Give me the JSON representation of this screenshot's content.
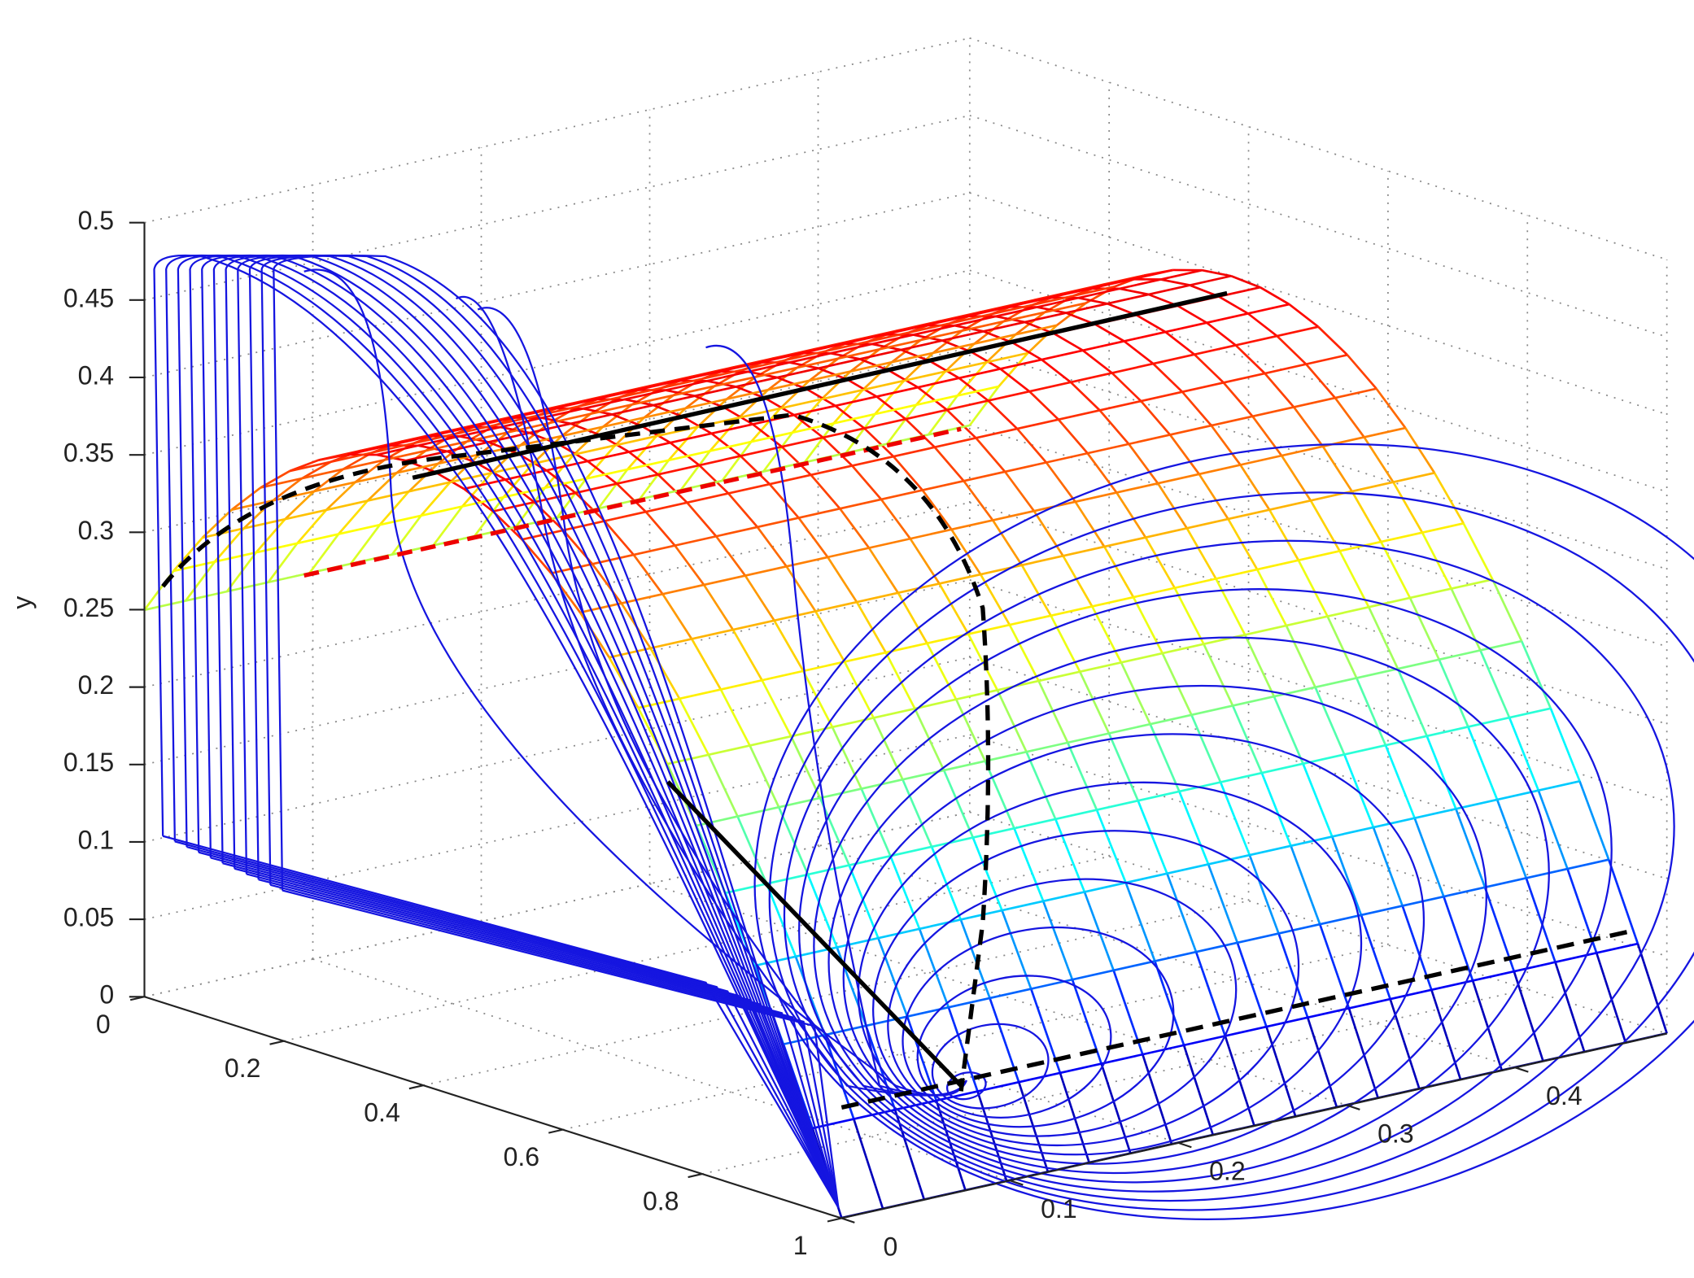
{
  "chart_data": {
    "type": "surface3d",
    "ylabel": "y",
    "xlim": [
      0,
      1
    ],
    "xticks": [
      0,
      0.2,
      0.4,
      0.6,
      0.8,
      1
    ],
    "zlim": [
      0,
      0.49
    ],
    "zticks": [
      0,
      0.1,
      0.2,
      0.3,
      0.4
    ],
    "ylim": [
      0,
      0.5
    ],
    "yticks": [
      0,
      0.05,
      0.1,
      0.15,
      0.2,
      0.25,
      0.3,
      0.35,
      0.4,
      0.45,
      0.5
    ],
    "grid": true
  }
}
